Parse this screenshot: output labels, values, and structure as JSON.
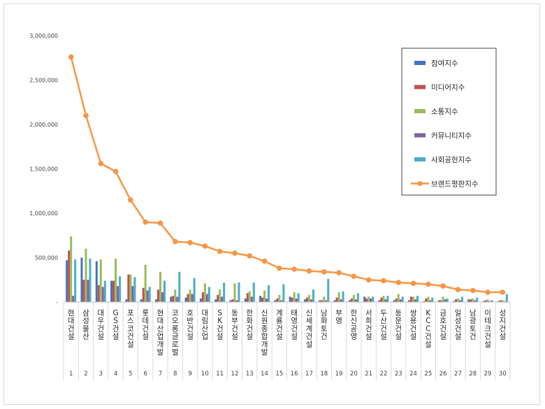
{
  "chart_data": {
    "type": "bar",
    "title": "",
    "xlabel": "",
    "ylabel": "",
    "ylim": [
      0,
      3000000
    ],
    "y_ticks": [
      "-",
      "500,000",
      "1,000,000",
      "1,500,000",
      "2,000,000",
      "2,500,000",
      "3,000,000"
    ],
    "y_tick_values": [
      0,
      500000,
      1000000,
      1500000,
      2000000,
      2500000,
      3000000
    ],
    "grid": false,
    "legend_position": "top-right",
    "categories": [
      "현대건설",
      "삼성물산",
      "대우건설",
      "GS건설",
      "포스코건설",
      "롯데건설",
      "현대산업개발",
      "코오롱글로벌",
      "호반건설",
      "대림산업",
      "SK건설",
      "동부건설",
      "한화건설",
      "신원종합개발",
      "계룡건설",
      "태영건설",
      "신세계건설",
      "남화토건",
      "부영",
      "한신공영",
      "서희건설",
      "두산건설",
      "동문건설",
      "쌍용건설",
      "KCC건설",
      "금호건설",
      "일성건설",
      "남광토건",
      "이테크건설",
      "성지건설"
    ],
    "ranks": [
      "1",
      "2",
      "3",
      "4",
      "5",
      "6",
      "7",
      "8",
      "9",
      "10",
      "11",
      "12",
      "13",
      "14",
      "15",
      "16",
      "17",
      "18",
      "19",
      "20",
      "21",
      "22",
      "23",
      "24",
      "25",
      "26",
      "27",
      "28",
      "29",
      "30"
    ],
    "series": [
      {
        "name": "참여지수",
        "kind": "bar",
        "color": "#4472c4",
        "values": [
          470000,
          500000,
          460000,
          240000,
          30000,
          30000,
          30000,
          60000,
          50000,
          40000,
          30000,
          20000,
          40000,
          70000,
          20000,
          60000,
          30000,
          20000,
          20000,
          20000,
          60000,
          20000,
          20000,
          20000,
          10000,
          20000,
          10000,
          30000,
          10000,
          10000
        ]
      },
      {
        "name": "미디어지수",
        "kind": "bar",
        "color": "#c0504d",
        "values": [
          580000,
          250000,
          190000,
          240000,
          310000,
          160000,
          140000,
          70000,
          90000,
          110000,
          80000,
          30000,
          100000,
          50000,
          40000,
          50000,
          50000,
          20000,
          50000,
          40000,
          40000,
          50000,
          40000,
          60000,
          40000,
          20000,
          30000,
          30000,
          20000,
          20000
        ]
      },
      {
        "name": "소통지수",
        "kind": "bar",
        "color": "#9bbb59",
        "values": [
          740000,
          600000,
          480000,
          490000,
          310000,
          420000,
          340000,
          140000,
          140000,
          210000,
          140000,
          210000,
          120000,
          130000,
          80000,
          110000,
          80000,
          60000,
          110000,
          80000,
          60000,
          70000,
          90000,
          60000,
          60000,
          60000,
          40000,
          40000,
          30000,
          20000
        ]
      },
      {
        "name": "커뮤니티지수",
        "kind": "bar",
        "color": "#8064a2",
        "values": [
          70000,
          250000,
          170000,
          180000,
          180000,
          130000,
          110000,
          60000,
          90000,
          90000,
          60000,
          20000,
          60000,
          40000,
          20000,
          40000,
          30000,
          20000,
          30000,
          30000,
          40000,
          30000,
          30000,
          30000,
          20000,
          30000,
          20000,
          20000,
          10000,
          10000
        ]
      },
      {
        "name": "사회공헌지수",
        "kind": "bar",
        "color": "#4bacc6",
        "values": [
          480000,
          490000,
          240000,
          290000,
          280000,
          170000,
          240000,
          340000,
          270000,
          170000,
          220000,
          220000,
          220000,
          190000,
          200000,
          100000,
          140000,
          260000,
          120000,
          100000,
          60000,
          70000,
          60000,
          70000,
          50000,
          40000,
          60000,
          50000,
          20000,
          90000
        ]
      },
      {
        "name": "브랜드평판지수",
        "kind": "line",
        "color": "#f79646",
        "values": [
          2760000,
          2100000,
          1560000,
          1470000,
          1150000,
          900000,
          890000,
          680000,
          670000,
          630000,
          570000,
          550000,
          520000,
          460000,
          380000,
          370000,
          350000,
          340000,
          330000,
          290000,
          250000,
          240000,
          220000,
          210000,
          200000,
          180000,
          140000,
          130000,
          110000,
          110000
        ]
      }
    ]
  }
}
